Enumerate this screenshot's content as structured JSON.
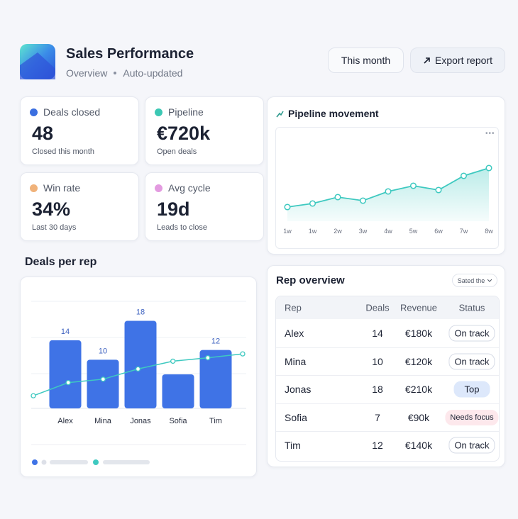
{
  "header": {
    "title": "Sales Performance",
    "subtitle": [
      "Overview",
      "Auto-updated"
    ],
    "buttons": [
      "This month",
      "Export report"
    ]
  },
  "kpis": [
    {
      "label": "Deals closed",
      "value": "48",
      "note": "Closed this month",
      "color": "#3b6fe0"
    },
    {
      "label": "Pipeline",
      "value": "€720k",
      "note": "Open deals",
      "color": "#3cc8b4"
    },
    {
      "label": "Win rate",
      "value": "34%",
      "note": "Last 30 days",
      "color": "#f0b27a"
    },
    {
      "label": "Avg cycle",
      "value": "19d",
      "note": "Leads to close",
      "color": "#e39be0"
    }
  ],
  "chart_data": [
    {
      "type": "line",
      "title": "Pipeline movement",
      "categories": [
        "1w",
        "1w",
        "2w",
        "3w",
        "4w",
        "5w",
        "6w",
        "7w",
        "8w"
      ],
      "values": [
        20,
        25,
        34,
        29,
        42,
        50,
        44,
        64,
        75
      ],
      "color": "#3ec9c0",
      "ylim": [
        0,
        100
      ]
    },
    {
      "type": "bar",
      "title": "Deals per rep",
      "categories": [
        "Alex",
        "Mina",
        "Jonas",
        "Sofia",
        "Tim"
      ],
      "values": [
        14,
        10,
        18,
        7,
        12
      ],
      "value_labels": [
        "14",
        "10",
        "18",
        null,
        "12"
      ],
      "color": "#3f73e6",
      "trend_line": {
        "color": "#3ec9c0",
        "values": [
          2.6,
          5.3,
          6.0,
          8.1,
          9.7,
          10.4,
          11.2
        ]
      },
      "ylim": [
        0,
        22
      ]
    }
  ],
  "table": {
    "title": "Rep overview",
    "filter": "Sated the",
    "columns": [
      "Rep",
      "Deals",
      "Revenue",
      "Status"
    ],
    "rows": [
      [
        "Alex",
        "14",
        "€180k",
        "On track"
      ],
      [
        "Mina",
        "10",
        "€120k",
        "On track"
      ],
      [
        "Jonas",
        "18",
        "€210k",
        "Top"
      ],
      [
        "Sofia",
        "7",
        "€90k",
        "Needs focus"
      ],
      [
        "Tim",
        "12",
        "€140k",
        "On track"
      ]
    ]
  }
}
